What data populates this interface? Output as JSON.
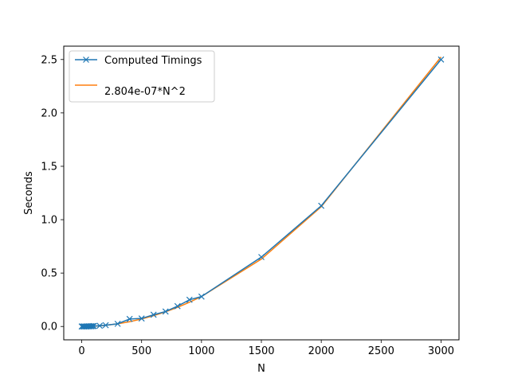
{
  "chart_data": {
    "type": "line",
    "title": "",
    "xlabel": "N",
    "ylabel": "Seconds",
    "xlim": [
      -150,
      3150
    ],
    "ylim": [
      -0.125,
      2.625
    ],
    "xticks": [
      0,
      500,
      1000,
      1500,
      2000,
      2500,
      3000
    ],
    "xtick_labels": [
      "0",
      "500",
      "1000",
      "1500",
      "2000",
      "2500",
      "3000"
    ],
    "yticks": [
      0.0,
      0.5,
      1.0,
      1.5,
      2.0,
      2.5
    ],
    "ytick_labels": [
      "0.0",
      "0.5",
      "1.0",
      "1.5",
      "2.0",
      "2.5"
    ],
    "grid": false,
    "legend_position": "top-left",
    "series": [
      {
        "name": "Computed Timings",
        "color": "#1f77b4",
        "marker": "x",
        "x": [
          0,
          10,
          20,
          30,
          40,
          50,
          60,
          70,
          80,
          90,
          100,
          150,
          200,
          300,
          400,
          500,
          600,
          700,
          800,
          900,
          1000,
          1500,
          2000,
          3000
        ],
        "y": [
          0.0,
          0.0,
          0.0,
          0.0,
          0.0,
          0.001,
          0.001,
          0.002,
          0.002,
          0.003,
          0.004,
          0.007,
          0.012,
          0.025,
          0.07,
          0.075,
          0.11,
          0.14,
          0.19,
          0.25,
          0.28,
          0.65,
          1.13,
          2.5
        ]
      },
      {
        "name": "2.804e-07*N^2",
        "color": "#ff7f0e",
        "marker": "none",
        "coefficient": 2.804e-07,
        "x": [
          0,
          10,
          20,
          30,
          40,
          50,
          60,
          70,
          80,
          90,
          100,
          150,
          200,
          300,
          400,
          500,
          600,
          700,
          800,
          900,
          1000,
          1500,
          2000,
          3000
        ]
      }
    ]
  }
}
